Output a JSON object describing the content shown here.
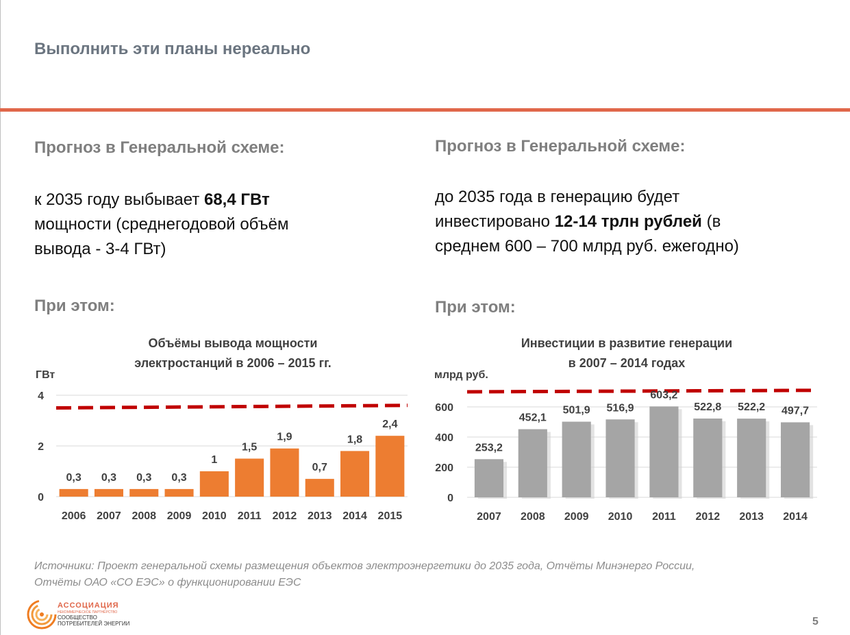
{
  "slide": {
    "title": "Выполнить эти планы нереально",
    "page_number": "5",
    "sources_line1": "Источники: Проект генеральной схемы размещения объектов электроэнергетики до 2035 года, Отчёты Минэнерго России,",
    "sources_line2": "Отчёты ОАО «СО ЕЭС» о функционировании ЕЭС",
    "logo": {
      "line1": "АССОЦИАЦИЯ",
      "line2": "НЕКОММЕРЧЕСКОЕ ПАРТНЁРСТВО",
      "line3": "СООБЩЕСТВО",
      "line4": "ПОТРЕБИТЕЛЕЙ ЭНЕРГИИ",
      "icon": "concentric-arcs-logo-icon"
    },
    "colors": {
      "accent": "#e0674a",
      "bar_orange": "#ed7d31",
      "bar_gray": "#a5a5a5",
      "threshold": "#c00000"
    }
  },
  "left": {
    "heading": "Прогноз в Генеральной схеме:",
    "text_pre": "к 2035 году выбывает ",
    "text_bold": "68,4 ГВт",
    "text_line2": "мощности (среднегодовой объём",
    "text_line3": "вывода -  3-4 ГВт)",
    "subheading": "При этом:"
  },
  "right": {
    "heading": "Прогноз в Генеральной схеме:",
    "text_line1": "до 2035 года в генерацию будет",
    "text_pre": "инвестировано ",
    "text_bold": "12-14 трлн рублей",
    "text_post": " (в",
    "text_line3": "среднем 600 – 700 млрд руб. ежегодно)",
    "subheading": "При этом:"
  },
  "chart_data": [
    {
      "type": "bar",
      "title_line1": "Объёмы вывода мощности",
      "title_line2": "электростанций в 2006 – 2015 гг.",
      "ylabel": "ГВт",
      "categories": [
        "2006",
        "2007",
        "2008",
        "2009",
        "2010",
        "2011",
        "2012",
        "2013",
        "2014",
        "2015"
      ],
      "values": [
        0.3,
        0.3,
        0.3,
        0.3,
        1,
        1.5,
        1.9,
        0.7,
        1.8,
        2.4
      ],
      "value_labels": [
        "0,3",
        "0,3",
        "0,3",
        "0,3",
        "1",
        "1,5",
        "1,9",
        "0,7",
        "1,8",
        "2,4"
      ],
      "yticks": [
        "0",
        "2",
        "4"
      ],
      "ytick_values": [
        0,
        2,
        4
      ],
      "ylim": [
        0,
        4
      ],
      "threshold_line": {
        "from": 3.5,
        "to": 3.6,
        "style": "dashed"
      },
      "grid": true,
      "color": "#ed7d31"
    },
    {
      "type": "bar",
      "title_line1": "Инвестиции в развитие генерации",
      "title_line2": "в 2007 – 2014 годах",
      "ylabel": "млрд руб.",
      "categories": [
        "2007",
        "2008",
        "2009",
        "2010",
        "2011",
        "2012",
        "2013",
        "2014"
      ],
      "values": [
        253.2,
        452.1,
        501.9,
        516.9,
        603.2,
        522.8,
        522.2,
        497.7
      ],
      "value_labels": [
        "253,2",
        "452,1",
        "501,9",
        "516,9",
        "603,2",
        "522,8",
        "522,2",
        "497,7"
      ],
      "yticks": [
        "0",
        "200",
        "400",
        "600"
      ],
      "ytick_values": [
        0,
        200,
        400,
        600
      ],
      "ylim": [
        0,
        600
      ],
      "threshold_line": {
        "from": 700,
        "to": 710,
        "style": "dashed"
      },
      "grid": true,
      "color": "#a5a5a5"
    }
  ]
}
